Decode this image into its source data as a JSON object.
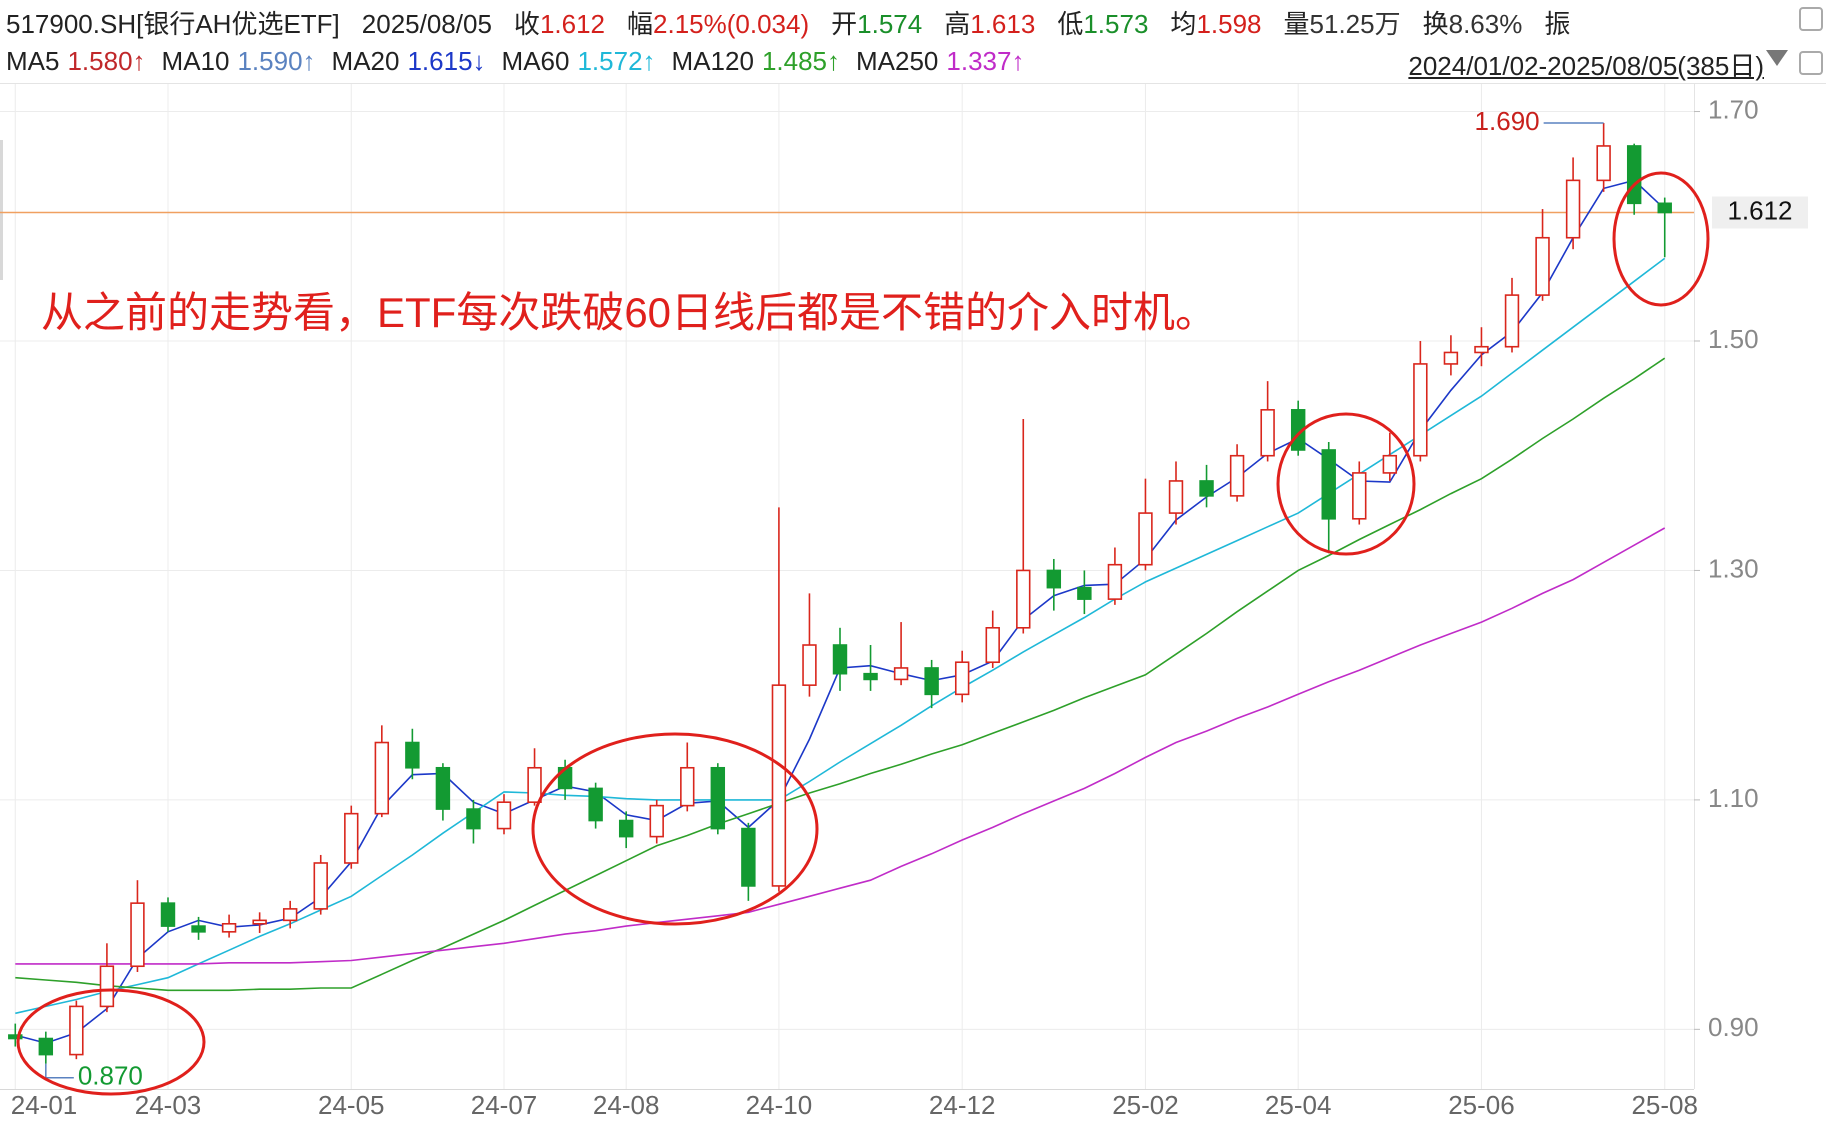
{
  "chart_data": {
    "type": "candlestick",
    "header": {
      "code": "517900.SH[银行AH优选ETF]",
      "date": "2025/08/05",
      "items": [
        {
          "label": "收",
          "value": "1.612",
          "color": "#d4201c"
        },
        {
          "label": "幅",
          "value": "2.15%(0.034)",
          "color": "#d4201c"
        },
        {
          "label": "开",
          "value": "1.574",
          "color": "#1a8f2a"
        },
        {
          "label": "高",
          "value": "1.613",
          "color": "#d4201c"
        },
        {
          "label": "低",
          "value": "1.573",
          "color": "#1a8f2a"
        },
        {
          "label": "均",
          "value": "1.598",
          "color": "#d4201c"
        },
        {
          "label": "量",
          "value": "51.25万",
          "color": "#333333"
        },
        {
          "label": "换",
          "value": "8.63%",
          "color": "#333333"
        },
        {
          "label": "振"
        }
      ],
      "range": "2024/01/02-2025/08/05(385日)"
    },
    "annotation": "从之前的走势看，ETF每次跌破60日线后都是不错的介入时机。",
    "categories": [
      "24-01",
      null,
      null,
      null,
      null,
      "24-03",
      null,
      null,
      null,
      null,
      null,
      "24-05",
      null,
      null,
      null,
      null,
      "24-07",
      null,
      null,
      null,
      "24-08",
      null,
      null,
      null,
      null,
      "24-10",
      null,
      null,
      null,
      null,
      null,
      "24-12",
      null,
      null,
      null,
      null,
      null,
      "25-02",
      null,
      null,
      null,
      null,
      "25-04",
      null,
      null,
      null,
      null,
      null,
      "25-06",
      null,
      null,
      null,
      null,
      null,
      "25-08"
    ],
    "open": [
      0.895,
      0.892,
      0.878,
      0.92,
      0.955,
      1.01,
      0.99,
      0.985,
      0.992,
      0.995,
      1.005,
      1.045,
      1.088,
      1.15,
      1.128,
      1.092,
      1.075,
      1.098,
      1.128,
      1.11,
      1.082,
      1.068,
      1.095,
      1.128,
      1.075,
      1.025,
      1.2,
      1.235,
      1.21,
      1.205,
      1.215,
      1.192,
      1.22,
      1.25,
      1.3,
      1.285,
      1.275,
      1.305,
      1.35,
      1.378,
      1.365,
      1.4,
      1.44,
      1.405,
      1.345,
      1.385,
      1.4,
      1.48,
      1.49,
      1.495,
      1.54,
      1.59,
      1.64,
      1.67,
      1.62
    ],
    "high": [
      0.905,
      0.898,
      0.925,
      0.975,
      1.03,
      1.015,
      0.998,
      1.0,
      1.002,
      1.012,
      1.052,
      1.095,
      1.165,
      1.162,
      1.132,
      1.1,
      1.105,
      1.145,
      1.135,
      1.115,
      1.09,
      1.1,
      1.15,
      1.132,
      1.08,
      1.355,
      1.28,
      1.25,
      1.235,
      1.255,
      1.222,
      1.23,
      1.265,
      1.432,
      1.31,
      1.3,
      1.32,
      1.38,
      1.395,
      1.392,
      1.41,
      1.465,
      1.448,
      1.412,
      1.395,
      1.42,
      1.5,
      1.505,
      1.512,
      1.555,
      1.615,
      1.66,
      1.69,
      1.672,
      1.625
    ],
    "low": [
      0.885,
      0.87,
      0.874,
      0.915,
      0.95,
      0.985,
      0.978,
      0.98,
      0.984,
      0.988,
      1.0,
      1.04,
      1.085,
      1.118,
      1.082,
      1.062,
      1.07,
      1.095,
      1.1,
      1.075,
      1.058,
      1.062,
      1.09,
      1.07,
      1.012,
      1.02,
      1.19,
      1.195,
      1.195,
      1.2,
      1.18,
      1.185,
      1.215,
      1.245,
      1.265,
      1.262,
      1.27,
      1.3,
      1.34,
      1.355,
      1.36,
      1.395,
      1.4,
      1.315,
      1.34,
      1.378,
      1.395,
      1.47,
      1.478,
      1.49,
      1.535,
      1.58,
      1.63,
      1.61,
      1.573
    ],
    "close": [
      0.892,
      0.878,
      0.92,
      0.955,
      1.01,
      0.99,
      0.985,
      0.992,
      0.995,
      1.005,
      1.045,
      1.088,
      1.15,
      1.128,
      1.092,
      1.075,
      1.098,
      1.128,
      1.11,
      1.082,
      1.068,
      1.095,
      1.128,
      1.075,
      1.025,
      1.2,
      1.235,
      1.21,
      1.205,
      1.215,
      1.192,
      1.22,
      1.25,
      1.3,
      1.285,
      1.275,
      1.305,
      1.35,
      1.378,
      1.365,
      1.4,
      1.44,
      1.405,
      1.345,
      1.385,
      1.4,
      1.48,
      1.49,
      1.495,
      1.54,
      1.59,
      1.64,
      1.67,
      1.62,
      1.612
    ],
    "up_color": "#d9261c",
    "down_color": "#139a32",
    "series": [
      {
        "name": "MA5",
        "legend_value": "1.580↑",
        "color": "#c0282a"
      },
      {
        "name": "MA10",
        "legend_value": "1.590↑",
        "color": "#5a82c0"
      },
      {
        "name": "MA20",
        "legend_value": "1.615↓",
        "color": "#1c38c8",
        "values": [
          0.895,
          0.888,
          0.897,
          0.918,
          0.962,
          0.985,
          0.995,
          0.989,
          0.991,
          0.997,
          1.015,
          1.046,
          1.094,
          1.122,
          1.123,
          1.098,
          1.088,
          1.1,
          1.112,
          1.107,
          1.087,
          1.082,
          1.097,
          1.099,
          1.076,
          1.1,
          1.153,
          1.215,
          1.217,
          1.21,
          1.204,
          1.209,
          1.221,
          1.257,
          1.278,
          1.287,
          1.288,
          1.31,
          1.344,
          1.364,
          1.381,
          1.402,
          1.415,
          1.397,
          1.378,
          1.377,
          1.422,
          1.457,
          1.488,
          1.508,
          1.542,
          1.59,
          1.633,
          1.64,
          1.615
        ]
      },
      {
        "name": "MA60",
        "legend_value": "1.572↑",
        "color": "#1fb8d8",
        "values": [
          0.914,
          0.92,
          0.926,
          0.933,
          0.939,
          0.945,
          0.957,
          0.969,
          0.981,
          0.992,
          1.004,
          1.016,
          1.034,
          1.052,
          1.071,
          1.089,
          1.107,
          1.106,
          1.104,
          1.103,
          1.101,
          1.1,
          1.1,
          1.1,
          1.1,
          1.1,
          1.116,
          1.133,
          1.149,
          1.165,
          1.182,
          1.198,
          1.213,
          1.229,
          1.244,
          1.259,
          1.275,
          1.29,
          1.302,
          1.314,
          1.326,
          1.338,
          1.35,
          1.367,
          1.384,
          1.401,
          1.418,
          1.435,
          1.452,
          1.472,
          1.492,
          1.512,
          1.532,
          1.552,
          1.572
        ]
      },
      {
        "name": "MA120",
        "legend_value": "1.485↑",
        "color": "#2ea02a",
        "values": [
          0.945,
          0.943,
          0.941,
          0.938,
          0.936,
          0.934,
          0.934,
          0.934,
          0.935,
          0.935,
          0.936,
          0.936,
          0.948,
          0.96,
          0.971,
          0.983,
          0.995,
          1.008,
          1.021,
          1.034,
          1.047,
          1.06,
          1.069,
          1.079,
          1.088,
          1.097,
          1.106,
          1.114,
          1.123,
          1.131,
          1.14,
          1.148,
          1.158,
          1.168,
          1.178,
          1.189,
          1.199,
          1.209,
          1.227,
          1.245,
          1.264,
          1.282,
          1.3,
          1.313,
          1.327,
          1.34,
          1.353,
          1.367,
          1.38,
          1.397,
          1.415,
          1.432,
          1.45,
          1.467,
          1.485
        ]
      },
      {
        "name": "MA250",
        "legend_value": "1.337↑",
        "color": "#c02cc8",
        "values": [
          0.957,
          0.957,
          0.957,
          0.957,
          0.957,
          0.957,
          0.957,
          0.958,
          0.958,
          0.958,
          0.959,
          0.96,
          0.963,
          0.966,
          0.969,
          0.972,
          0.975,
          0.979,
          0.983,
          0.986,
          0.99,
          0.993,
          0.996,
          0.999,
          1.002,
          1.009,
          1.016,
          1.023,
          1.03,
          1.042,
          1.053,
          1.065,
          1.076,
          1.088,
          1.099,
          1.11,
          1.123,
          1.137,
          1.15,
          1.16,
          1.171,
          1.181,
          1.192,
          1.203,
          1.213,
          1.224,
          1.235,
          1.245,
          1.255,
          1.267,
          1.28,
          1.292,
          1.307,
          1.322,
          1.337
        ]
      }
    ],
    "high_marker": {
      "value": 1.69,
      "label": "1.690"
    },
    "low_marker": {
      "value": 0.87,
      "label": "0.870"
    },
    "last_price": {
      "value": 1.612,
      "label": "1.612"
    },
    "last_price_color": "#f0a060",
    "ylim": [
      0.848,
      1.724
    ],
    "yticks": [
      {
        "value": 0.9,
        "label": "0.90"
      },
      {
        "value": 1.1,
        "label": "1.10"
      },
      {
        "value": 1.3,
        "label": "1.30"
      },
      {
        "value": 1.5,
        "label": "1.50"
      },
      {
        "value": 1.7,
        "label": "1.70"
      }
    ],
    "grid": true
  }
}
